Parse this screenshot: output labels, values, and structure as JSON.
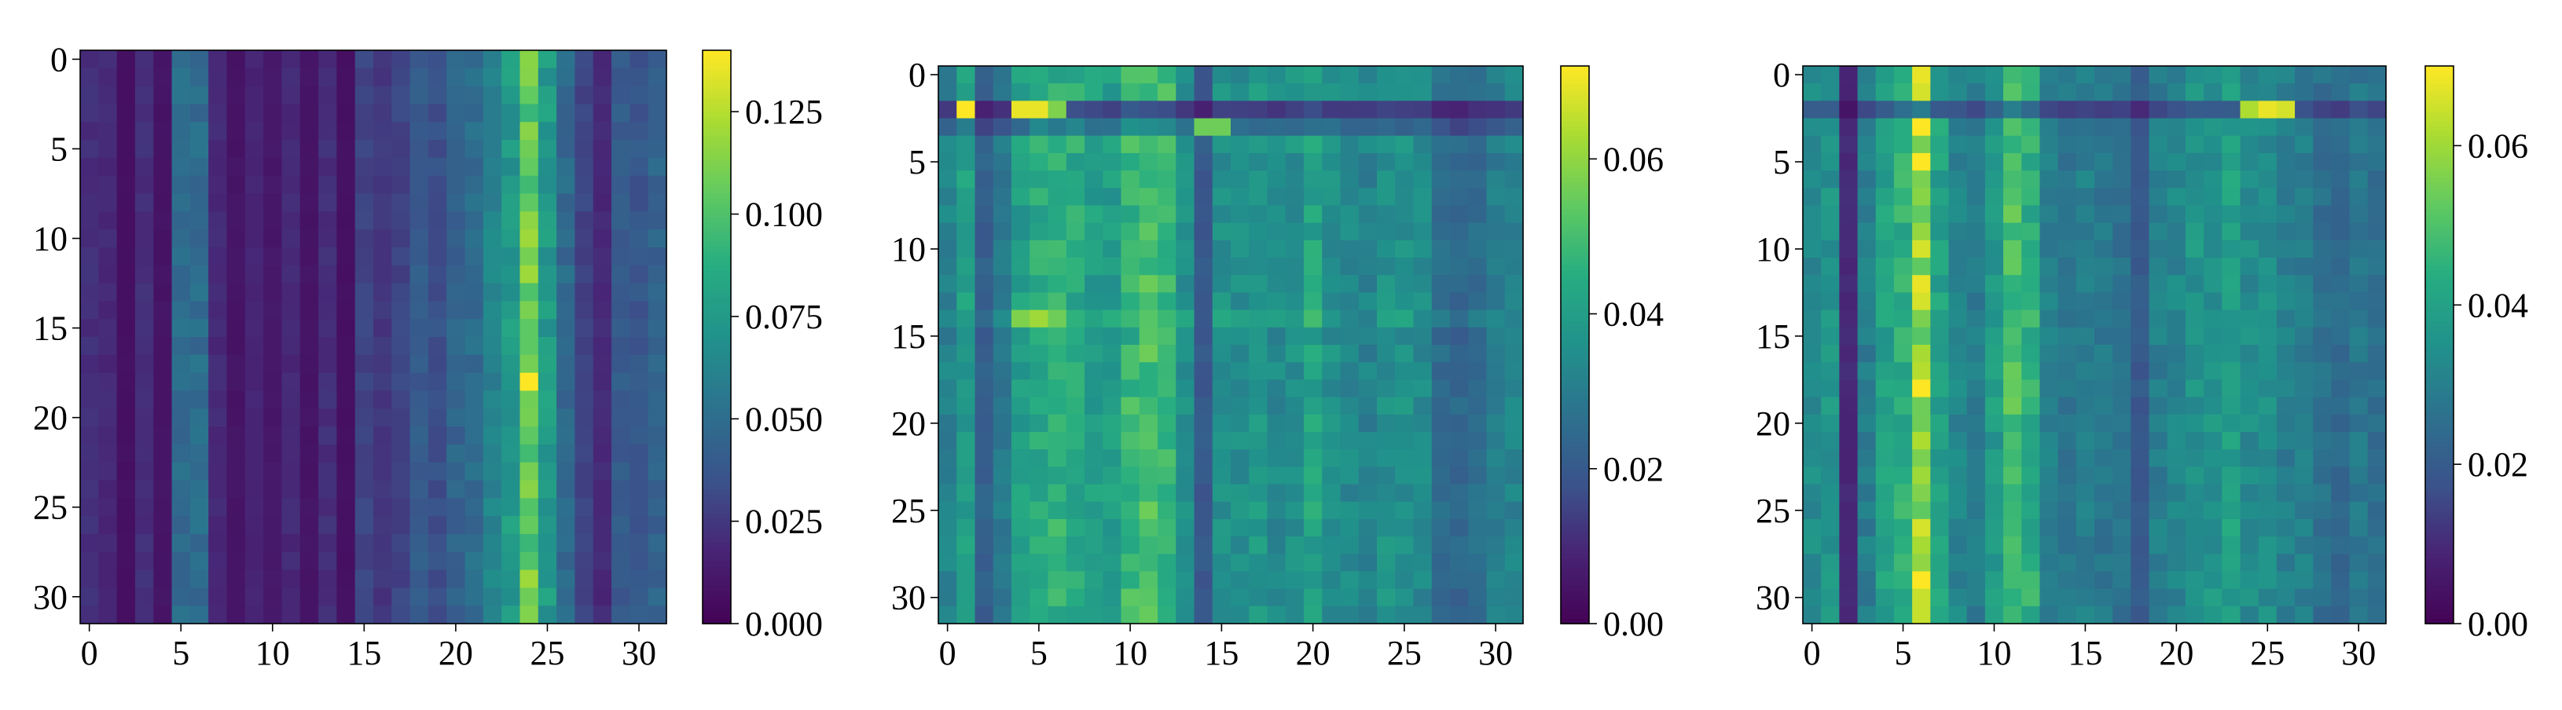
{
  "chart_data": [
    {
      "type": "heatmap",
      "rows": 32,
      "cols": 32,
      "xticks": [
        "0",
        "5",
        "10",
        "15",
        "20",
        "25",
        "30"
      ],
      "yticks": [
        "0",
        "5",
        "10",
        "15",
        "20",
        "25",
        "30"
      ],
      "colorbar": {
        "vmin": 0.0,
        "vmax": 0.14,
        "ticks": [
          "0.000",
          "0.025",
          "0.050",
          "0.075",
          "0.100",
          "0.125"
        ]
      },
      "col_profile": [
        0.022,
        0.02,
        0.008,
        0.022,
        0.01,
        0.05,
        0.05,
        0.02,
        0.01,
        0.018,
        0.012,
        0.02,
        0.01,
        0.022,
        0.008,
        0.03,
        0.025,
        0.03,
        0.04,
        0.035,
        0.045,
        0.05,
        0.062,
        0.075,
        0.105,
        0.075,
        0.048,
        0.03,
        0.02,
        0.04,
        0.038,
        0.045
      ],
      "row_profile": [
        1.0,
        1.0,
        1.0,
        1.0,
        1.0,
        1.0,
        1.0,
        1.0,
        1.0,
        1.0,
        1.0,
        1.0,
        1.0,
        1.0,
        1.0,
        1.0,
        1.0,
        1.0,
        1.0,
        1.0,
        1.0,
        1.0,
        1.0,
        1.0,
        1.0,
        1.0,
        1.0,
        1.0,
        1.0,
        1.0,
        1.0,
        1.0
      ],
      "hot_cells": [
        {
          "row": 18,
          "col": 24,
          "value": 0.14
        },
        {
          "row": 10,
          "col": 24,
          "value": 0.12
        },
        {
          "row": 12,
          "col": 24,
          "value": 0.12
        },
        {
          "row": 29,
          "col": 24,
          "value": 0.12
        },
        {
          "row": 24,
          "col": 24,
          "value": 0.115
        },
        {
          "row": 4,
          "col": 24,
          "value": 0.115
        }
      ]
    },
    {
      "type": "heatmap",
      "rows": 32,
      "cols": 32,
      "xticks": [
        "0",
        "5",
        "10",
        "15",
        "20",
        "25",
        "30"
      ],
      "yticks": [
        "0",
        "5",
        "10",
        "15",
        "20",
        "25",
        "30"
      ],
      "colorbar": {
        "vmin": 0.0,
        "vmax": 0.072,
        "ticks": [
          "0.00",
          "0.02",
          "0.04",
          "0.06"
        ]
      },
      "col_profile": [
        0.032,
        0.04,
        0.022,
        0.03,
        0.04,
        0.044,
        0.046,
        0.044,
        0.04,
        0.04,
        0.048,
        0.05,
        0.048,
        0.036,
        0.02,
        0.036,
        0.036,
        0.038,
        0.034,
        0.036,
        0.042,
        0.036,
        0.034,
        0.032,
        0.036,
        0.036,
        0.034,
        0.026,
        0.024,
        0.026,
        0.03,
        0.032
      ],
      "row_profile": [
        1.0,
        1.0,
        0.4,
        0.7,
        1.05,
        1.0,
        1.0,
        1.0,
        1.0,
        1.0,
        1.0,
        1.0,
        1.0,
        1.0,
        1.1,
        0.95,
        1.0,
        1.0,
        1.0,
        1.0,
        1.0,
        1.0,
        1.0,
        1.0,
        1.0,
        1.0,
        1.0,
        1.0,
        1.0,
        1.0,
        1.0,
        1.0
      ],
      "hot_cells": [
        {
          "row": 2,
          "col": 1,
          "value": 0.072
        },
        {
          "row": 2,
          "col": 4,
          "value": 0.07
        },
        {
          "row": 2,
          "col": 5,
          "value": 0.07
        },
        {
          "row": 2,
          "col": 6,
          "value": 0.058
        },
        {
          "row": 14,
          "col": 4,
          "value": 0.058
        },
        {
          "row": 14,
          "col": 5,
          "value": 0.062
        },
        {
          "row": 14,
          "col": 6,
          "value": 0.056
        },
        {
          "row": 3,
          "col": 14,
          "value": 0.056
        },
        {
          "row": 3,
          "col": 15,
          "value": 0.056
        }
      ]
    },
    {
      "type": "heatmap",
      "rows": 32,
      "cols": 32,
      "xticks": [
        "0",
        "5",
        "10",
        "15",
        "20",
        "25",
        "30"
      ],
      "yticks": [
        "0",
        "5",
        "10",
        "15",
        "20",
        "25",
        "30"
      ],
      "colorbar": {
        "vmin": 0.0,
        "vmax": 0.07,
        "ticks": [
          "0.00",
          "0.02",
          "0.04",
          "0.06"
        ]
      },
      "col_profile": [
        0.034,
        0.036,
        0.01,
        0.03,
        0.04,
        0.044,
        0.058,
        0.04,
        0.032,
        0.03,
        0.038,
        0.05,
        0.044,
        0.03,
        0.028,
        0.03,
        0.028,
        0.026,
        0.02,
        0.03,
        0.032,
        0.036,
        0.036,
        0.04,
        0.034,
        0.034,
        0.03,
        0.03,
        0.026,
        0.024,
        0.028,
        0.026
      ],
      "row_profile": [
        1.0,
        1.0,
        0.55,
        1.0,
        1.0,
        1.0,
        1.0,
        1.0,
        1.0,
        1.0,
        1.0,
        1.0,
        1.0,
        1.0,
        1.0,
        1.0,
        1.0,
        1.0,
        1.0,
        1.0,
        1.0,
        1.0,
        1.0,
        1.0,
        1.0,
        1.0,
        1.0,
        1.0,
        1.0,
        1.0,
        1.0,
        1.0
      ],
      "hot_cells": [
        {
          "row": 0,
          "col": 6,
          "value": 0.068
        },
        {
          "row": 1,
          "col": 6,
          "value": 0.066
        },
        {
          "row": 3,
          "col": 6,
          "value": 0.07
        },
        {
          "row": 5,
          "col": 6,
          "value": 0.07
        },
        {
          "row": 10,
          "col": 6,
          "value": 0.066
        },
        {
          "row": 12,
          "col": 6,
          "value": 0.068
        },
        {
          "row": 13,
          "col": 6,
          "value": 0.066
        },
        {
          "row": 18,
          "col": 6,
          "value": 0.07
        },
        {
          "row": 26,
          "col": 6,
          "value": 0.066
        },
        {
          "row": 29,
          "col": 6,
          "value": 0.07
        },
        {
          "row": 2,
          "col": 24,
          "value": 0.062
        },
        {
          "row": 2,
          "col": 25,
          "value": 0.068
        },
        {
          "row": 2,
          "col": 26,
          "value": 0.066
        }
      ]
    }
  ]
}
